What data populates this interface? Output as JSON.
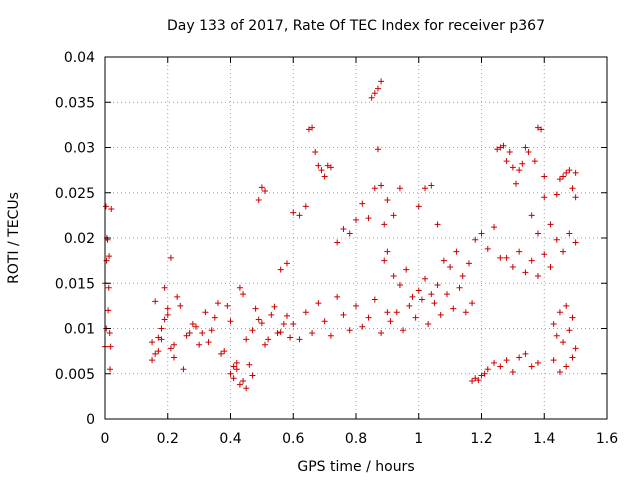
{
  "chart_data": {
    "type": "scatter",
    "title": "Day 133 of 2017, Rate Of TEC Index for receiver p367",
    "xlabel": "GPS time / hours",
    "ylabel": "ROTI / TECUs",
    "xlim": [
      0,
      1.6
    ],
    "ylim": [
      0,
      0.04
    ],
    "xticks": [
      0,
      0.2,
      0.4,
      0.6,
      0.8,
      1,
      1.2,
      1.4,
      1.6
    ],
    "xtick_labels": [
      "0",
      "0.2",
      "0.4",
      "0.6",
      "0.8",
      "1",
      "1.2",
      "1.4",
      "1.6"
    ],
    "yticks": [
      0,
      0.005,
      0.01,
      0.015,
      0.02,
      0.025,
      0.03,
      0.035,
      0.04
    ],
    "ytick_labels": [
      "0",
      "0.005",
      "0.01",
      "0.015",
      "0.02",
      "0.025",
      "0.03",
      "0.035",
      "0.04"
    ],
    "grid": true,
    "marker": "+",
    "series": [
      {
        "name": "ROTI",
        "color": "#cc0000",
        "x": [
          0.0,
          0.003,
          0.006,
          0.01,
          0.013,
          0.016,
          0.02,
          0.0,
          0.004,
          0.008,
          0.012,
          0.015,
          0.018,
          0.005,
          0.15,
          0.16,
          0.17,
          0.18,
          0.19,
          0.2,
          0.21,
          0.22,
          0.15,
          0.17,
          0.19,
          0.21,
          0.23,
          0.25,
          0.27,
          0.29,
          0.16,
          0.18,
          0.2,
          0.22,
          0.24,
          0.26,
          0.28,
          0.3,
          0.32,
          0.34,
          0.36,
          0.38,
          0.4,
          0.42,
          0.44,
          0.31,
          0.33,
          0.35,
          0.37,
          0.39,
          0.41,
          0.43,
          0.45,
          0.47,
          0.49,
          0.51,
          0.53,
          0.55,
          0.57,
          0.59,
          0.4,
          0.41,
          0.42,
          0.43,
          0.44,
          0.45,
          0.46,
          0.47,
          0.48,
          0.5,
          0.52,
          0.54,
          0.56,
          0.58,
          0.49,
          0.5,
          0.51,
          0.56,
          0.58,
          0.6,
          0.62,
          0.64,
          0.65,
          0.66,
          0.67,
          0.68,
          0.69,
          0.7,
          0.71,
          0.72,
          0.6,
          0.62,
          0.64,
          0.66,
          0.68,
          0.7,
          0.72,
          0.74,
          0.76,
          0.78,
          0.8,
          0.82,
          0.84,
          0.86,
          0.88,
          0.9,
          0.74,
          0.76,
          0.78,
          0.8,
          0.82,
          0.84,
          0.86,
          0.87,
          0.88,
          0.89,
          0.9,
          0.92,
          0.94,
          0.85,
          0.86,
          0.87,
          0.88,
          0.89,
          0.9,
          0.92,
          0.94,
          0.96,
          0.98,
          1.0,
          1.02,
          1.04,
          1.06,
          0.91,
          0.93,
          0.95,
          0.97,
          0.99,
          1.01,
          1.03,
          1.05,
          1.07,
          1.09,
          1.11,
          1.13,
          1.15,
          1.17,
          1.0,
          1.02,
          1.04,
          1.06,
          1.08,
          1.1,
          1.12,
          1.14,
          1.16,
          1.18,
          1.2,
          1.22,
          1.24,
          1.26,
          1.17,
          1.18,
          1.19,
          1.2,
          1.21,
          1.22,
          1.24,
          1.26,
          1.28,
          1.3,
          1.32,
          1.34,
          1.36,
          1.38,
          1.25,
          1.26,
          1.27,
          1.28,
          1.29,
          1.3,
          1.31,
          1.32,
          1.33,
          1.34,
          1.35,
          1.37,
          1.38,
          1.39,
          1.4,
          1.28,
          1.3,
          1.32,
          1.34,
          1.36,
          1.38,
          1.4,
          1.42,
          1.44,
          1.46,
          1.48,
          1.5,
          1.36,
          1.38,
          1.4,
          1.42,
          1.44,
          1.45,
          1.46,
          1.47,
          1.48,
          1.49,
          1.5,
          1.5,
          1.43,
          1.44,
          1.45,
          1.46,
          1.47,
          1.48,
          1.49,
          1.5,
          1.43,
          1.45,
          1.47,
          1.49
        ],
        "y": [
          0.008,
          0.0235,
          0.02,
          0.012,
          0.018,
          0.0055,
          0.0232,
          0.015,
          0.01,
          0.0198,
          0.0145,
          0.0095,
          0.008,
          0.0175,
          0.0085,
          0.013,
          0.0075,
          0.01,
          0.0145,
          0.0122,
          0.0178,
          0.0082,
          0.0065,
          0.009,
          0.011,
          0.0078,
          0.0135,
          0.0055,
          0.0095,
          0.0102,
          0.0072,
          0.0088,
          0.0115,
          0.0068,
          0.0125,
          0.0092,
          0.0105,
          0.0082,
          0.0118,
          0.0098,
          0.0128,
          0.0075,
          0.0108,
          0.0062,
          0.0138,
          0.0095,
          0.0085,
          0.0112,
          0.0072,
          0.0125,
          0.0058,
          0.0145,
          0.0088,
          0.0098,
          0.011,
          0.0082,
          0.0115,
          0.0095,
          0.0105,
          0.009,
          0.005,
          0.0045,
          0.0055,
          0.0038,
          0.0042,
          0.0034,
          0.006,
          0.0048,
          0.0122,
          0.0106,
          0.0088,
          0.0124,
          0.0096,
          0.0114,
          0.0242,
          0.0256,
          0.0252,
          0.0165,
          0.0172,
          0.0228,
          0.0225,
          0.0235,
          0.032,
          0.0322,
          0.0295,
          0.028,
          0.0275,
          0.0268,
          0.028,
          0.0278,
          0.0105,
          0.0088,
          0.0118,
          0.0095,
          0.0128,
          0.0108,
          0.0092,
          0.0135,
          0.0115,
          0.0098,
          0.0125,
          0.0102,
          0.0112,
          0.0132,
          0.0095,
          0.0118,
          0.0195,
          0.021,
          0.0205,
          0.022,
          0.0238,
          0.0222,
          0.0255,
          0.0298,
          0.0258,
          0.0215,
          0.0242,
          0.0225,
          0.0255,
          0.0355,
          0.036,
          0.0365,
          0.0373,
          0.0175,
          0.0185,
          0.0158,
          0.0148,
          0.0165,
          0.0135,
          0.0142,
          0.0155,
          0.0138,
          0.0148,
          0.0108,
          0.0118,
          0.0098,
          0.0125,
          0.0112,
          0.0132,
          0.0105,
          0.0128,
          0.0115,
          0.0138,
          0.0122,
          0.0145,
          0.0118,
          0.0128,
          0.0235,
          0.0255,
          0.0258,
          0.0215,
          0.0175,
          0.0168,
          0.0185,
          0.0158,
          0.0172,
          0.0198,
          0.0205,
          0.0188,
          0.0212,
          0.0178,
          0.0042,
          0.0045,
          0.0043,
          0.0048,
          0.005,
          0.0055,
          0.0062,
          0.0058,
          0.0065,
          0.0052,
          0.0068,
          0.0072,
          0.0058,
          0.0062,
          0.0298,
          0.03,
          0.0302,
          0.0285,
          0.0295,
          0.0278,
          0.026,
          0.0275,
          0.0282,
          0.03,
          0.0295,
          0.0285,
          0.0322,
          0.032,
          0.0268,
          0.0178,
          0.0168,
          0.0185,
          0.0162,
          0.0175,
          0.0158,
          0.0182,
          0.0168,
          0.0198,
          0.0185,
          0.0205,
          0.0195,
          0.0225,
          0.0205,
          0.0245,
          0.0215,
          0.0248,
          0.0265,
          0.0268,
          0.0272,
          0.0275,
          0.0255,
          0.0272,
          0.0245,
          0.0105,
          0.0092,
          0.0118,
          0.0085,
          0.0125,
          0.0098,
          0.0112,
          0.0078,
          0.0065,
          0.0052,
          0.0058,
          0.0068
        ]
      }
    ]
  }
}
